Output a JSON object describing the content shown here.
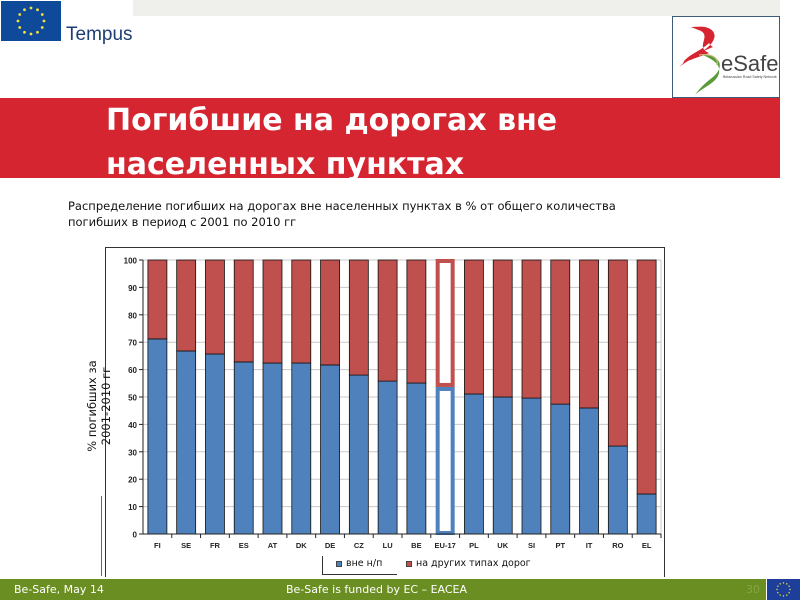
{
  "header": {
    "tempus_label": "Tempus",
    "besafe_logo_text": "eSafe",
    "besafe_tagline": "Belarussian Road Safety Network"
  },
  "slide": {
    "title_line1": "Погибшие на дорогах вне",
    "title_line2": "населенных пунктах",
    "subtitle_line1": "Распределение погибших на дорогах вне населенных пунктах в % от общего количества",
    "subtitle_line2": "погибших  в период с 2001 по 2010 гг"
  },
  "colors": {
    "title_band": "#d42531",
    "series_outside": "#4f81bd",
    "series_other": "#c0504d",
    "footer": "#6b8e22"
  },
  "chart_data": {
    "type": "bar",
    "stacked": true,
    "title": "",
    "xlabel": "",
    "ylabel": "% погибших за 2001-2010 гг",
    "ylabel_line1": "% погибших за",
    "ylabel_line2": "2001-2010 гг",
    "ylim": [
      0,
      100
    ],
    "yticks": [
      0,
      10,
      20,
      30,
      40,
      50,
      60,
      70,
      80,
      90,
      100
    ],
    "grid": true,
    "legend_position": "bottom",
    "categories": [
      "FI",
      "SE",
      "FR",
      "ES",
      "AT",
      "DK",
      "DE",
      "CZ",
      "LU",
      "BE",
      "EU-17",
      "PL",
      "UK",
      "SI",
      "PT",
      "IT",
      "RO",
      "EL"
    ],
    "highlight_category": "EU-17",
    "series": [
      {
        "name": "вне н/п",
        "color": "#4f81bd",
        "values": [
          71.2,
          66.8,
          65.7,
          62.8,
          62.4,
          62.4,
          61.7,
          58.0,
          55.8,
          55.1,
          53.3,
          51.1,
          50.0,
          49.6,
          47.4,
          46.0,
          32.1,
          14.6
        ]
      },
      {
        "name": "на других типах дорог",
        "color": "#c0504d",
        "values": [
          28.8,
          33.2,
          34.3,
          37.2,
          37.6,
          37.6,
          38.3,
          42.0,
          44.2,
          44.9,
          46.7,
          48.9,
          50.0,
          50.4,
          52.6,
          54.0,
          67.9,
          85.4
        ]
      }
    ]
  },
  "legend": {
    "items": [
      {
        "label": "вне н/п",
        "color": "#4f81bd"
      },
      {
        "label": "на других типах дорог",
        "color": "#c0504d"
      }
    ]
  },
  "footer": {
    "left": "Be-Safe, May 14",
    "center": "Be-Safe is funded by EC – EACEA",
    "page_number": "30"
  }
}
